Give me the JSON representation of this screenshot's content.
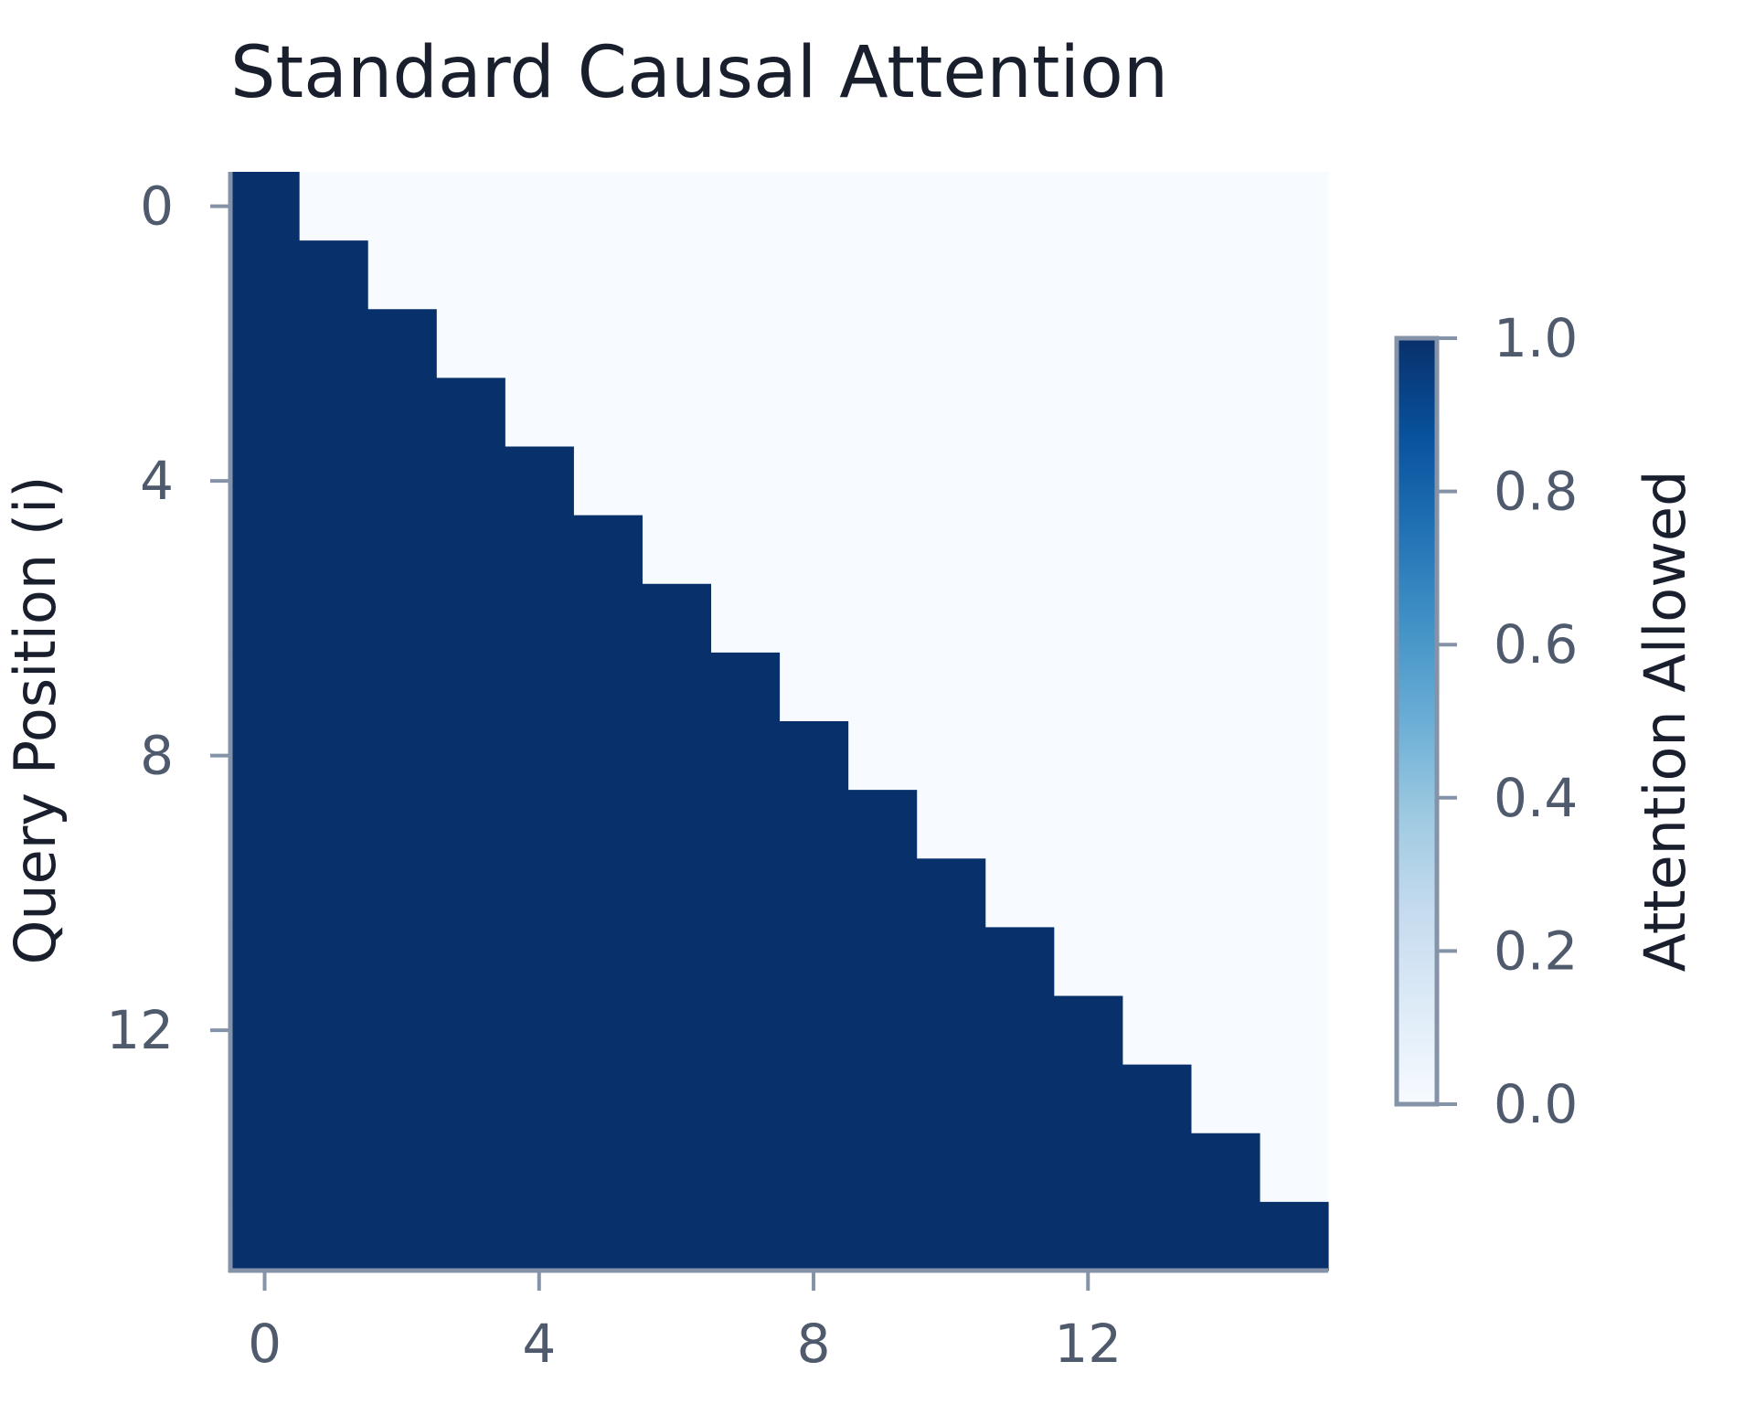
{
  "chart_data": {
    "type": "heatmap",
    "title": "Standard Causal Attention",
    "xlabel": "",
    "ylabel": "Query Position (i)",
    "rows": 16,
    "cols": 16,
    "matrix_rule": "lower-triangular (1 where column <= row, else 0)",
    "x_ticks": [
      0,
      4,
      8,
      12
    ],
    "y_ticks": [
      0,
      4,
      8,
      12
    ],
    "colorbar": {
      "label": "Attention Allowed",
      "range": [
        0.0,
        1.0
      ],
      "ticks": [
        "0.0",
        "0.2",
        "0.4",
        "0.6",
        "0.8",
        "1.0"
      ],
      "colormap": "Blues"
    },
    "grid": false,
    "colors": {
      "one": "#08306b",
      "zero": "#f7fbff",
      "axis": "#8593a8",
      "tick_text": "#4f5b6d",
      "title_text": "#1a1f2e"
    }
  }
}
